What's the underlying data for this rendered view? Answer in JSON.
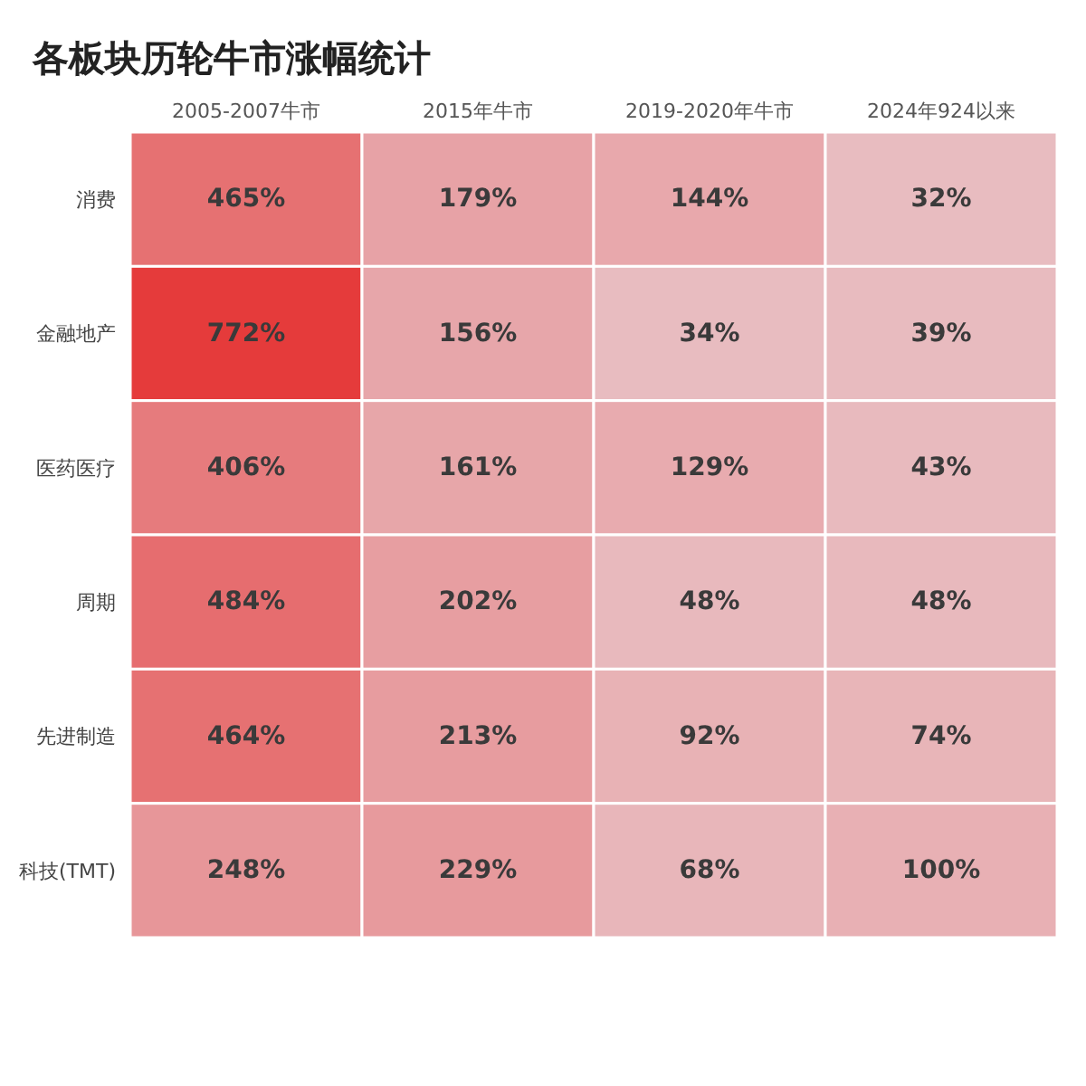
{
  "chart_data": {
    "type": "heatmap",
    "title": "各板块历轮牛市涨幅统计",
    "categories": [
      "2005-2007牛市",
      "2015年牛市",
      "2019-2020年牛市",
      "2024年924以来"
    ],
    "y_categories": [
      "消费",
      "金融地产",
      "医药医疗",
      "周期",
      "先进制造",
      "科技(TMT)"
    ],
    "cells": [
      [
        465,
        179,
        144,
        32
      ],
      [
        772,
        156,
        34,
        39
      ],
      [
        406,
        161,
        129,
        43
      ],
      [
        484,
        202,
        48,
        48
      ],
      [
        464,
        213,
        92,
        74
      ],
      [
        248,
        229,
        68,
        100
      ]
    ],
    "cell_labels": [
      [
        "465%",
        "179%",
        "144%",
        "32%"
      ],
      [
        "772%",
        "156%",
        "34%",
        "39%"
      ],
      [
        "406%",
        "161%",
        "129%",
        "43%"
      ],
      [
        "484%",
        "202%",
        "48%",
        "48%"
      ],
      [
        "464%",
        "213%",
        "92%",
        "74%"
      ],
      [
        "248%",
        "229%",
        "68%",
        "100%"
      ]
    ]
  }
}
